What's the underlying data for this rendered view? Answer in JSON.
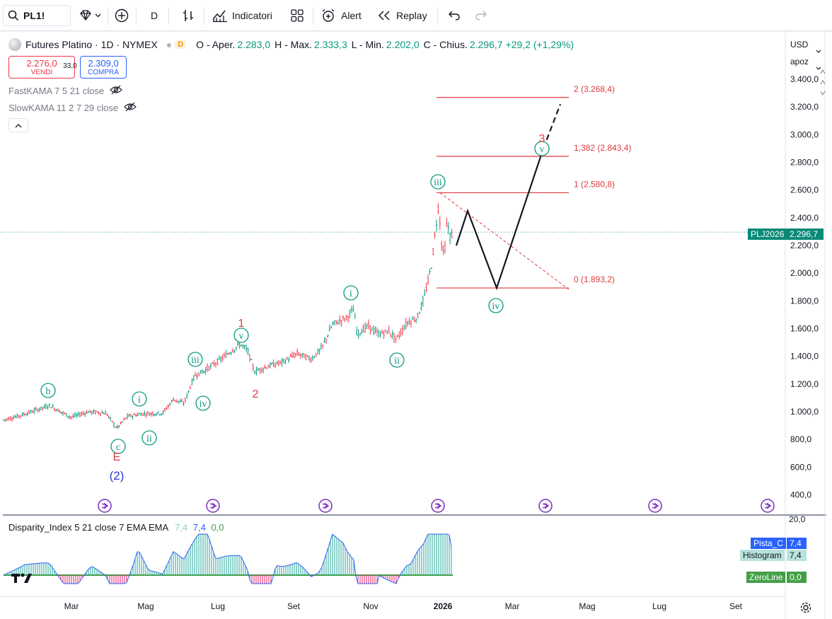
{
  "toolbar": {
    "symbol": "PL1!",
    "interval": "D",
    "indicators_label": "Indicatori",
    "alert_label": "Alert",
    "replay_label": "Replay"
  },
  "legend": {
    "title": "Futures Platino · 1D · NYMEX",
    "badge": "D",
    "open_k": "O - Aper.",
    "open_v": "2.283,0",
    "high_k": "H - Max.",
    "high_v": "2.333,3",
    "low_k": "L - Min.",
    "low_v": "2.202,0",
    "close_k": "C - Chius.",
    "close_v": "2.296,7",
    "change": "+29,2 (+1,29%)"
  },
  "trade": {
    "sell_price": "2.276,0",
    "sell_label": "VENDI",
    "spread": "33,0",
    "buy_price": "2.309,0",
    "buy_label": "COMPRA"
  },
  "indicators": [
    {
      "label": "FastKAMA 7 5 21 close"
    },
    {
      "label": "SlowKAMA 11 2 7 29 close"
    }
  ],
  "right_panel": {
    "currency": "USD",
    "scale_mode": "apoz"
  },
  "price_axis": [
    "3.400,0",
    "3.200,0",
    "3.000,0",
    "2.800,0",
    "2.600,0",
    "2.400,0",
    "2.200,0",
    "2.000,0",
    "1.800,0",
    "1.600,0",
    "1.400,0",
    "1.200,0",
    "1.000,0",
    "800,0",
    "600,0",
    "400,0"
  ],
  "price_tag": {
    "symbol": "PLJ2026",
    "value": "2.296,7"
  },
  "fib_levels": [
    {
      "label": "2 (3.268,4)",
      "price": 3268.4
    },
    {
      "label": "1,382 (2.843,4)",
      "price": 2843.4
    },
    {
      "label": "1 (2.580,8)",
      "price": 2580.8
    },
    {
      "label": "0 (1.893,2)",
      "price": 1893.2
    }
  ],
  "time_axis": [
    "Mar",
    "Mag",
    "Lug",
    "Set",
    "Nov",
    "2026",
    "Mar",
    "Mag",
    "Lug",
    "Set"
  ],
  "wave_labels": {
    "b": "b",
    "c": "c",
    "E": "E",
    "w2_big": "(2)",
    "i1": "i",
    "ii1": "ii",
    "iii1": "iii",
    "iv1": "iv",
    "v1": "v",
    "one": "1",
    "two": "2",
    "i2": "i",
    "ii2": "ii",
    "iii2": "iii",
    "iv2": "iv",
    "v2": "v",
    "three": "3"
  },
  "oscillator": {
    "title": "Disparity_Index 5 21 close 7 EMA EMA",
    "v1": "7,4",
    "v2": "7,4",
    "v3": "0,0",
    "axis_top": "20,0",
    "pista_label": "Pista_C",
    "pista_value": "7,4",
    "hist_label": "Histogram",
    "hist_value": "7,4",
    "zero_label": "ZeroLine",
    "zero_value": "0,0"
  },
  "colors": {
    "up": "#089981",
    "wave_red": "#e03a3e",
    "wave_blue": "#2b3bd6",
    "fib": "#e03a3e",
    "price_tag": "#0a8a77"
  }
}
